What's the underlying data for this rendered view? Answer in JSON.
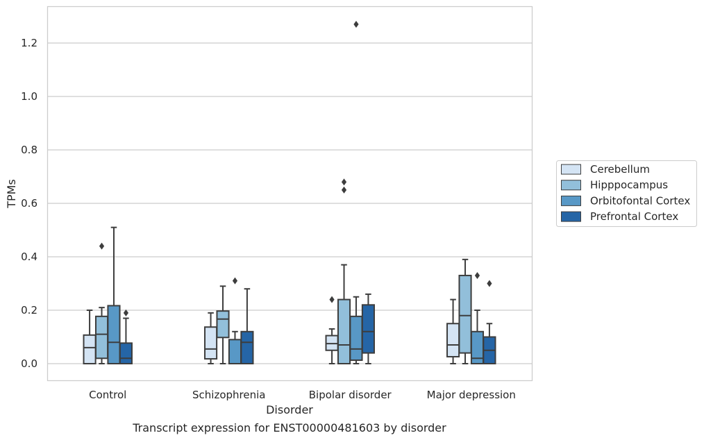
{
  "chart_data": {
    "type": "box",
    "caption": "Transcript expression for ENST00000481603 by disorder",
    "xlabel": "Disorder",
    "ylabel": "TPMs",
    "ylim": [
      -0.06,
      1.34
    ],
    "yticks": [
      0.0,
      0.2,
      0.4,
      0.6,
      0.8,
      1.0,
      1.2
    ],
    "ytick_labels": [
      "0.0",
      "0.2",
      "0.4",
      "0.6",
      "0.8",
      "1.0",
      "1.2"
    ],
    "grid": "horizontal",
    "legend_position": "right, outside plot",
    "categories": [
      "Control",
      "Schizophrenia",
      "Bipolar disorder",
      "Major depression"
    ],
    "series": [
      {
        "name": "Cerebellum",
        "color": "#d4e4f4",
        "boxes": [
          {
            "min": 0.0,
            "q1": 0.0,
            "median": 0.06,
            "q3": 0.107,
            "max": 0.2,
            "outliers": []
          },
          {
            "min": 0.0,
            "q1": 0.018,
            "median": 0.055,
            "q3": 0.137,
            "max": 0.19,
            "outliers": []
          },
          {
            "min": 0.0,
            "q1": 0.05,
            "median": 0.075,
            "q3": 0.105,
            "max": 0.13,
            "outliers": [
              0.24
            ]
          },
          {
            "min": 0.0,
            "q1": 0.026,
            "median": 0.07,
            "q3": 0.15,
            "max": 0.24,
            "outliers": []
          }
        ]
      },
      {
        "name": "Hipppocampus",
        "color": "#92bfda",
        "boxes": [
          {
            "min": 0.0,
            "q1": 0.02,
            "median": 0.11,
            "q3": 0.177,
            "max": 0.21,
            "outliers": [
              0.44
            ]
          },
          {
            "min": 0.0,
            "q1": 0.098,
            "median": 0.167,
            "q3": 0.197,
            "max": 0.29,
            "outliers": []
          },
          {
            "min": 0.0,
            "q1": 0.0,
            "median": 0.07,
            "q3": 0.24,
            "max": 0.37,
            "outliers": [
              0.68,
              0.65
            ]
          },
          {
            "min": 0.0,
            "q1": 0.04,
            "median": 0.18,
            "q3": 0.33,
            "max": 0.39,
            "outliers": []
          }
        ]
      },
      {
        "name": "Orbitofontal Cortex",
        "color": "#5898c6",
        "boxes": [
          {
            "min": 0.0,
            "q1": 0.0,
            "median": 0.08,
            "q3": 0.217,
            "max": 0.51,
            "outliers": []
          },
          {
            "min": 0.0,
            "q1": 0.0,
            "median": 0.0,
            "q3": 0.09,
            "max": 0.12,
            "outliers": [
              0.31
            ]
          },
          {
            "min": 0.0,
            "q1": 0.013,
            "median": 0.055,
            "q3": 0.177,
            "max": 0.25,
            "outliers": [
              1.27
            ]
          },
          {
            "min": 0.0,
            "q1": 0.0,
            "median": 0.02,
            "q3": 0.12,
            "max": 0.2,
            "outliers": [
              0.33
            ]
          }
        ]
      },
      {
        "name": "Prefrontal Cortex",
        "color": "#2565a6",
        "boxes": [
          {
            "min": 0.0,
            "q1": 0.0,
            "median": 0.02,
            "q3": 0.077,
            "max": 0.17,
            "outliers": [
              0.19
            ]
          },
          {
            "min": 0.0,
            "q1": 0.0,
            "median": 0.08,
            "q3": 0.12,
            "max": 0.28,
            "outliers": []
          },
          {
            "min": 0.0,
            "q1": 0.04,
            "median": 0.12,
            "q3": 0.22,
            "max": 0.26,
            "outliers": []
          },
          {
            "min": 0.0,
            "q1": 0.0,
            "median": 0.05,
            "q3": 0.1,
            "max": 0.15,
            "outliers": [
              0.3
            ]
          }
        ]
      }
    ],
    "colors": {
      "frame": "#cccccc",
      "grid": "#cccccc",
      "stroke": "#3d3d3d"
    }
  }
}
